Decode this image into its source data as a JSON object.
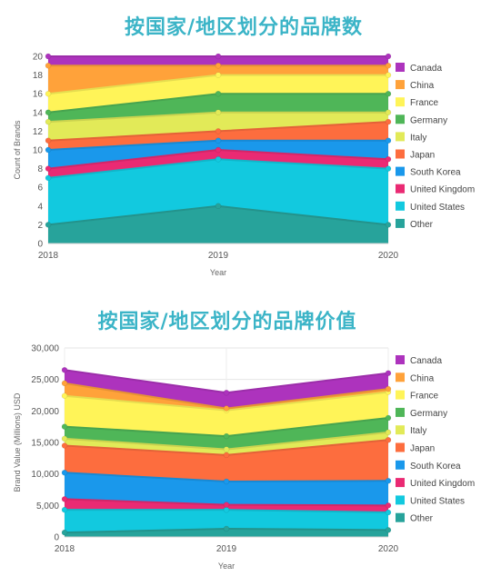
{
  "chart_data": [
    {
      "type": "area",
      "stacked": true,
      "title": "按国家/地区划分的品牌数",
      "xlabel": "Year",
      "ylabel": "Count of Brands",
      "x": [
        "2018",
        "2019",
        "2020"
      ],
      "ylim": [
        0,
        20
      ],
      "yticks": [
        0,
        2,
        4,
        6,
        8,
        10,
        12,
        14,
        16,
        18,
        20
      ],
      "legend_position": "right",
      "series": [
        {
          "name": "Other",
          "color": "#27a39b",
          "values": [
            2,
            4,
            2
          ]
        },
        {
          "name": "United States",
          "color": "#12c9df",
          "values": [
            5,
            5,
            6
          ]
        },
        {
          "name": "United Kingdom",
          "color": "#ea2a73",
          "values": [
            1,
            1,
            1
          ]
        },
        {
          "name": "South Korea",
          "color": "#1a98eb",
          "values": [
            2,
            1,
            2
          ]
        },
        {
          "name": "Japan",
          "color": "#fd6d3e",
          "values": [
            1,
            1,
            2
          ]
        },
        {
          "name": "Italy",
          "color": "#e2ea58",
          "values": [
            2,
            2,
            1
          ]
        },
        {
          "name": "Germany",
          "color": "#4fb658",
          "values": [
            1,
            2,
            2
          ]
        },
        {
          "name": "France",
          "color": "#fff458",
          "values": [
            2,
            2,
            2
          ]
        },
        {
          "name": "China",
          "color": "#ffa23a",
          "values": [
            3,
            1,
            1
          ]
        },
        {
          "name": "Canada",
          "color": "#ad33bd",
          "values": [
            1,
            1,
            1
          ]
        }
      ]
    },
    {
      "type": "area",
      "stacked": true,
      "title": "按国家/地区划分的品牌价值",
      "xlabel": "Year",
      "ylabel": "Brand Value (Millions) USD",
      "x": [
        "2018",
        "2019",
        "2020"
      ],
      "ylim": [
        0,
        30000
      ],
      "yticks": [
        0,
        5000,
        10000,
        15000,
        20000,
        25000,
        30000
      ],
      "ytick_labels": [
        "0",
        "5,000",
        "10,000",
        "15,000",
        "20,000",
        "25,000",
        "30,000"
      ],
      "legend_position": "right",
      "series": [
        {
          "name": "Other",
          "color": "#27a39b",
          "values": [
            700,
            1300,
            1100
          ]
        },
        {
          "name": "United States",
          "color": "#12c9df",
          "values": [
            3600,
            3000,
            2800
          ]
        },
        {
          "name": "United Kingdom",
          "color": "#ea2a73",
          "values": [
            1700,
            800,
            1100
          ]
        },
        {
          "name": "South Korea",
          "color": "#1a98eb",
          "values": [
            4200,
            3700,
            3900
          ]
        },
        {
          "name": "Japan",
          "color": "#fd6d3e",
          "values": [
            4300,
            4200,
            6500
          ]
        },
        {
          "name": "Italy",
          "color": "#e2ea58",
          "values": [
            1100,
            900,
            1200
          ]
        },
        {
          "name": "Germany",
          "color": "#4fb658",
          "values": [
            1900,
            2100,
            2300
          ]
        },
        {
          "name": "France",
          "color": "#fff458",
          "values": [
            4900,
            4100,
            4100
          ]
        },
        {
          "name": "China",
          "color": "#ffa23a",
          "values": [
            2000,
            300,
            500
          ]
        },
        {
          "name": "Canada",
          "color": "#ad33bd",
          "values": [
            2100,
            2500,
            2500
          ]
        }
      ]
    }
  ]
}
